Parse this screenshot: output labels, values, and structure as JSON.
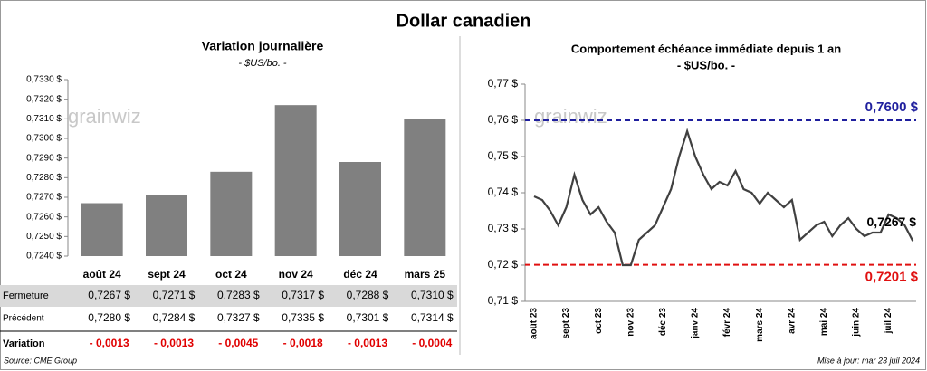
{
  "title": "Dollar canadien",
  "watermark": "grainwiz",
  "source": "Source: CME Group",
  "updated": "Mise à jour: mar 23 juil 2024",
  "table": {
    "rows": [
      {
        "label": "Fermeture",
        "cells": [
          "0,7267 $",
          "0,7271 $",
          "0,7283 $",
          "0,7317 $",
          "0,7288 $",
          "0,7310 $"
        ]
      },
      {
        "label": "Précédent",
        "cells": [
          "0,7280 $",
          "0,7284 $",
          "0,7327 $",
          "0,7335 $",
          "0,7301 $",
          "0,7314 $"
        ]
      },
      {
        "label": "Variation",
        "cells": [
          "- 0,0013",
          "- 0,0013",
          "- 0,0045",
          "- 0,0018",
          "- 0,0013",
          "- 0,0004"
        ]
      }
    ]
  },
  "chart_data": [
    {
      "type": "bar",
      "title": "Variation  journalière",
      "subtitle": "- $US/bo. -",
      "categories": [
        "août 24",
        "sept 24",
        "oct 24",
        "nov 24",
        "déc 24",
        "mars 25"
      ],
      "values": [
        0.7267,
        0.7271,
        0.7283,
        0.7317,
        0.7288,
        0.731
      ],
      "color": "#808080",
      "ylim": [
        0.724,
        0.733
      ],
      "yticks": [
        {
          "value": 0.724,
          "label": "0,7240 $"
        },
        {
          "value": 0.725,
          "label": "0,7250 $"
        },
        {
          "value": 0.726,
          "label": "0,7260 $"
        },
        {
          "value": 0.727,
          "label": "0,7270 $"
        },
        {
          "value": 0.728,
          "label": "0,7280 $"
        },
        {
          "value": 0.729,
          "label": "0,7290 $"
        },
        {
          "value": 0.73,
          "label": "0,7300 $"
        },
        {
          "value": 0.731,
          "label": "0,7310 $"
        },
        {
          "value": 0.732,
          "label": "0,7320 $"
        },
        {
          "value": 0.733,
          "label": "0,7330 $"
        }
      ]
    },
    {
      "type": "line",
      "title": "Comportement échéance immédiate depuis 1 an",
      "subtitle": "- $US/bo. -",
      "categories": [
        "août 23",
        null,
        null,
        null,
        "sept 23",
        null,
        null,
        null,
        "oct 23",
        null,
        null,
        null,
        "nov 23",
        null,
        null,
        null,
        "déc 23",
        null,
        null,
        null,
        "janv 24",
        null,
        null,
        null,
        "févr 24",
        null,
        null,
        null,
        "mars 24",
        null,
        null,
        null,
        "avr 24",
        null,
        null,
        null,
        "mai 24",
        null,
        null,
        null,
        "juin 24",
        null,
        null,
        null,
        "juil 24",
        null,
        null,
        null
      ],
      "series": [
        {
          "name": "Dollar canadien",
          "color": "#404040",
          "values": [
            0.739,
            0.738,
            0.735,
            0.731,
            0.736,
            0.745,
            0.738,
            0.734,
            0.736,
            0.732,
            0.729,
            0.72,
            0.72,
            0.727,
            0.729,
            0.731,
            0.736,
            0.741,
            0.75,
            0.757,
            0.75,
            0.745,
            0.741,
            0.743,
            0.742,
            0.746,
            0.741,
            0.74,
            0.737,
            0.74,
            0.738,
            0.736,
            0.738,
            0.727,
            0.729,
            0.731,
            0.732,
            0.728,
            0.731,
            0.733,
            0.73,
            0.728,
            0.729,
            0.729,
            0.734,
            0.733,
            0.731,
            0.7267
          ]
        }
      ],
      "end_label": "0,7267 $",
      "reference_lines": [
        {
          "value": 0.76,
          "label": "0,7600 $",
          "color": "#1f1f9e"
        },
        {
          "value": 0.7201,
          "label": "0,7201 $",
          "color": "#e01010"
        }
      ],
      "ylim": [
        0.71,
        0.77
      ],
      "yticks": [
        {
          "value": 0.71,
          "label": "0,71 $"
        },
        {
          "value": 0.72,
          "label": "0,72 $"
        },
        {
          "value": 0.73,
          "label": "0,73 $"
        },
        {
          "value": 0.74,
          "label": "0,74 $"
        },
        {
          "value": 0.75,
          "label": "0,75 $"
        },
        {
          "value": 0.76,
          "label": "0,76 $"
        },
        {
          "value": 0.77,
          "label": "0,77 $"
        }
      ]
    }
  ]
}
